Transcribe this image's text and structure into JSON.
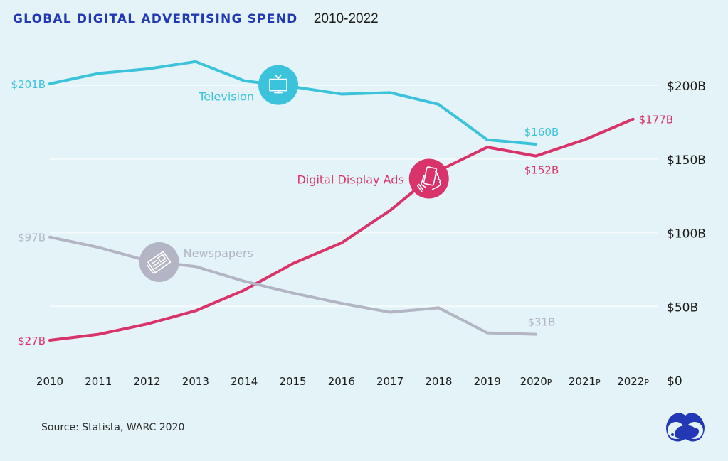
{
  "header": {
    "title": "GLOBAL DIGITAL ADVERTISING SPEND",
    "subtitle": "2010-2022"
  },
  "footer": {
    "source": "Source: Statista, WARC 2020",
    "logo_icon": "binoculars-piggy-bank-logo-icon"
  },
  "colors": {
    "background": "#e4f3f7",
    "title": "#2338b5",
    "television": "#3cc3dc",
    "digital": "#d9336b",
    "newspapers": "#b3b5c4",
    "gridline": "#f4fbfd",
    "axis_text": "#1b1b1b"
  },
  "chart_data": {
    "type": "line",
    "title": "GLOBAL DIGITAL ADVERTISING SPEND",
    "subtitle": "2010-2022",
    "xlabel": "",
    "ylabel": "",
    "categories": [
      "2010",
      "2011",
      "2012",
      "2013",
      "2014",
      "2015",
      "2016",
      "2017",
      "2018",
      "2019",
      "2020P",
      "2021P",
      "2022P"
    ],
    "x_tick_labels": [
      {
        "main": "2010",
        "suffix": ""
      },
      {
        "main": "2011",
        "suffix": ""
      },
      {
        "main": "2012",
        "suffix": ""
      },
      {
        "main": "2013",
        "suffix": ""
      },
      {
        "main": "2014",
        "suffix": ""
      },
      {
        "main": "2015",
        "suffix": ""
      },
      {
        "main": "2016",
        "suffix": ""
      },
      {
        "main": "2017",
        "suffix": ""
      },
      {
        "main": "2018",
        "suffix": ""
      },
      {
        "main": "2019",
        "suffix": ""
      },
      {
        "main": "2020",
        "suffix": "P"
      },
      {
        "main": "2021",
        "suffix": "P"
      },
      {
        "main": "2022",
        "suffix": "P"
      }
    ],
    "ylim": [
      0,
      200
    ],
    "y_ticks": [
      0,
      50,
      100,
      150,
      200
    ],
    "y_tick_labels": [
      "$0",
      "$50B",
      "$100B",
      "$150B",
      "$200B"
    ],
    "y_axis_side": "right",
    "grid": true,
    "legend": "inline labels with icons",
    "series": [
      {
        "name": "Television",
        "color": "#3cc3dc",
        "icon": "television-icon",
        "values": [
          201,
          208,
          211,
          216,
          203,
          199,
          194,
          195,
          187,
          163,
          160,
          null,
          null
        ],
        "start_label": "$201B",
        "end_label": "$160B",
        "icon_at_index": 4.7
      },
      {
        "name": "Digital Display Ads",
        "color": "#d9336b",
        "icon": "hand-holding-phone-icon",
        "values": [
          27,
          31,
          38,
          47,
          61,
          79,
          93,
          115,
          142,
          158,
          152,
          163,
          177
        ],
        "start_label": "$27B",
        "end_label": "$177B",
        "extra_labels": [
          {
            "index": 10,
            "text": "$152B"
          }
        ],
        "icon_at_index": 7.8
      },
      {
        "name": "Newspapers",
        "color": "#b3b5c4",
        "icon": "newspaper-icon",
        "values": [
          97,
          90,
          81,
          77,
          67,
          59,
          52,
          46,
          49,
          32,
          31,
          null,
          null
        ],
        "start_label": "$97B",
        "end_label": "$31B",
        "icon_at_index": 2.25
      }
    ]
  }
}
